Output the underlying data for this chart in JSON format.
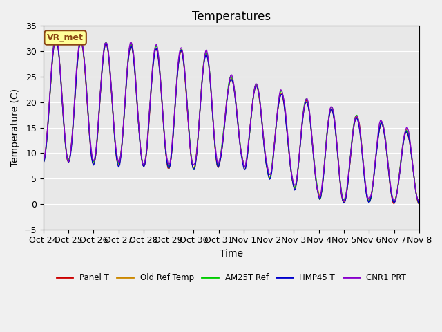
{
  "title": "Temperatures",
  "ylabel": "Temperature (C)",
  "xlabel": "Time",
  "annotation": "VR_met",
  "ylim": [
    -5,
    35
  ],
  "yticks": [
    -5,
    0,
    5,
    10,
    15,
    20,
    25,
    30,
    35
  ],
  "xtick_labels": [
    "Oct 24",
    "Oct 25",
    "Oct 26",
    "Oct 27",
    "Oct 28",
    "Oct 29",
    "Oct 30",
    "Oct 31",
    "Nov 1",
    "Nov 2",
    "Nov 3",
    "Nov 4",
    "Nov 5",
    "Nov 6",
    "Nov 7",
    "Nov 8"
  ],
  "series_colors": [
    "#cc0000",
    "#cc8800",
    "#00cc00",
    "#0000cc",
    "#8800cc"
  ],
  "series_labels": [
    "Panel T",
    "Old Ref Temp",
    "AM25T Ref",
    "HMP45 T",
    "CNR1 PRT"
  ],
  "bg_color": "#e8e8e8",
  "title_fontsize": 12,
  "axis_fontsize": 10,
  "tick_fontsize": 9
}
